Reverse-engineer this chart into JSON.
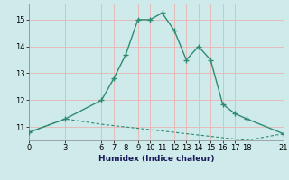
{
  "xlabel": "Humidex (Indice chaleur)",
  "ylabel": "",
  "background_color": "#ceeaea",
  "grid_color": "#e8b4b4",
  "line_color": "#2e8b70",
  "curve1_x": [
    0,
    3,
    6,
    7,
    8,
    9,
    10,
    11,
    12,
    13,
    14,
    15,
    16,
    17,
    18,
    21
  ],
  "curve1_y": [
    10.8,
    11.3,
    12.0,
    12.8,
    13.7,
    15.0,
    15.0,
    15.25,
    14.6,
    13.5,
    14.0,
    13.5,
    11.85,
    11.5,
    11.3,
    10.75
  ],
  "curve2_x": [
    0,
    3,
    6,
    7,
    8,
    9,
    10,
    11,
    12,
    13,
    14,
    15,
    16,
    17,
    18,
    21
  ],
  "curve2_y": [
    10.8,
    11.3,
    11.1,
    11.05,
    11.0,
    10.95,
    10.9,
    10.85,
    10.8,
    10.75,
    10.7,
    10.65,
    10.6,
    10.55,
    10.5,
    10.75
  ],
  "xticks": [
    0,
    3,
    6,
    7,
    8,
    9,
    10,
    11,
    12,
    13,
    14,
    15,
    16,
    17,
    18,
    21
  ],
  "yticks": [
    11,
    12,
    13,
    14,
    15
  ],
  "ylim": [
    10.5,
    15.6
  ],
  "xlim": [
    0,
    21
  ]
}
